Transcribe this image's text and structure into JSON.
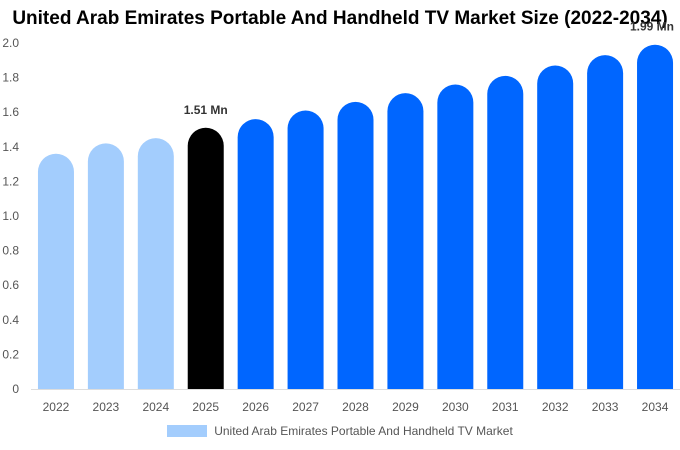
{
  "chart_data": {
    "type": "bar",
    "title": "United Arab Emirates Portable And Handheld TV Market Size (2022-2034)",
    "categories": [
      "2022",
      "2023",
      "2024",
      "2025",
      "2026",
      "2027",
      "2028",
      "2029",
      "2030",
      "2031",
      "2032",
      "2033",
      "2034"
    ],
    "series": [
      {
        "name": "United Arab Emirates Portable And Handheld TV Market",
        "values": [
          1.36,
          1.42,
          1.45,
          1.51,
          1.56,
          1.61,
          1.66,
          1.71,
          1.76,
          1.81,
          1.87,
          1.93,
          1.99
        ]
      }
    ],
    "ylim": [
      0,
      2.0
    ],
    "yticks": [
      "0",
      "0.2",
      "0.4",
      "0.6",
      "0.8",
      "1.0",
      "1.2",
      "1.4",
      "1.6",
      "1.8",
      "2.0"
    ],
    "data_labels": [
      {
        "category": "2025",
        "text": "1.51 Mn"
      },
      {
        "category": "2034",
        "text": "1.99 Mn"
      }
    ],
    "colors": {
      "historical": "#a3cdfd",
      "current": "#000000",
      "forecast": "#0066ff",
      "legend": "#a3cdfd"
    },
    "highlight_category": "2025",
    "grid": false,
    "legend_position": "bottom"
  }
}
